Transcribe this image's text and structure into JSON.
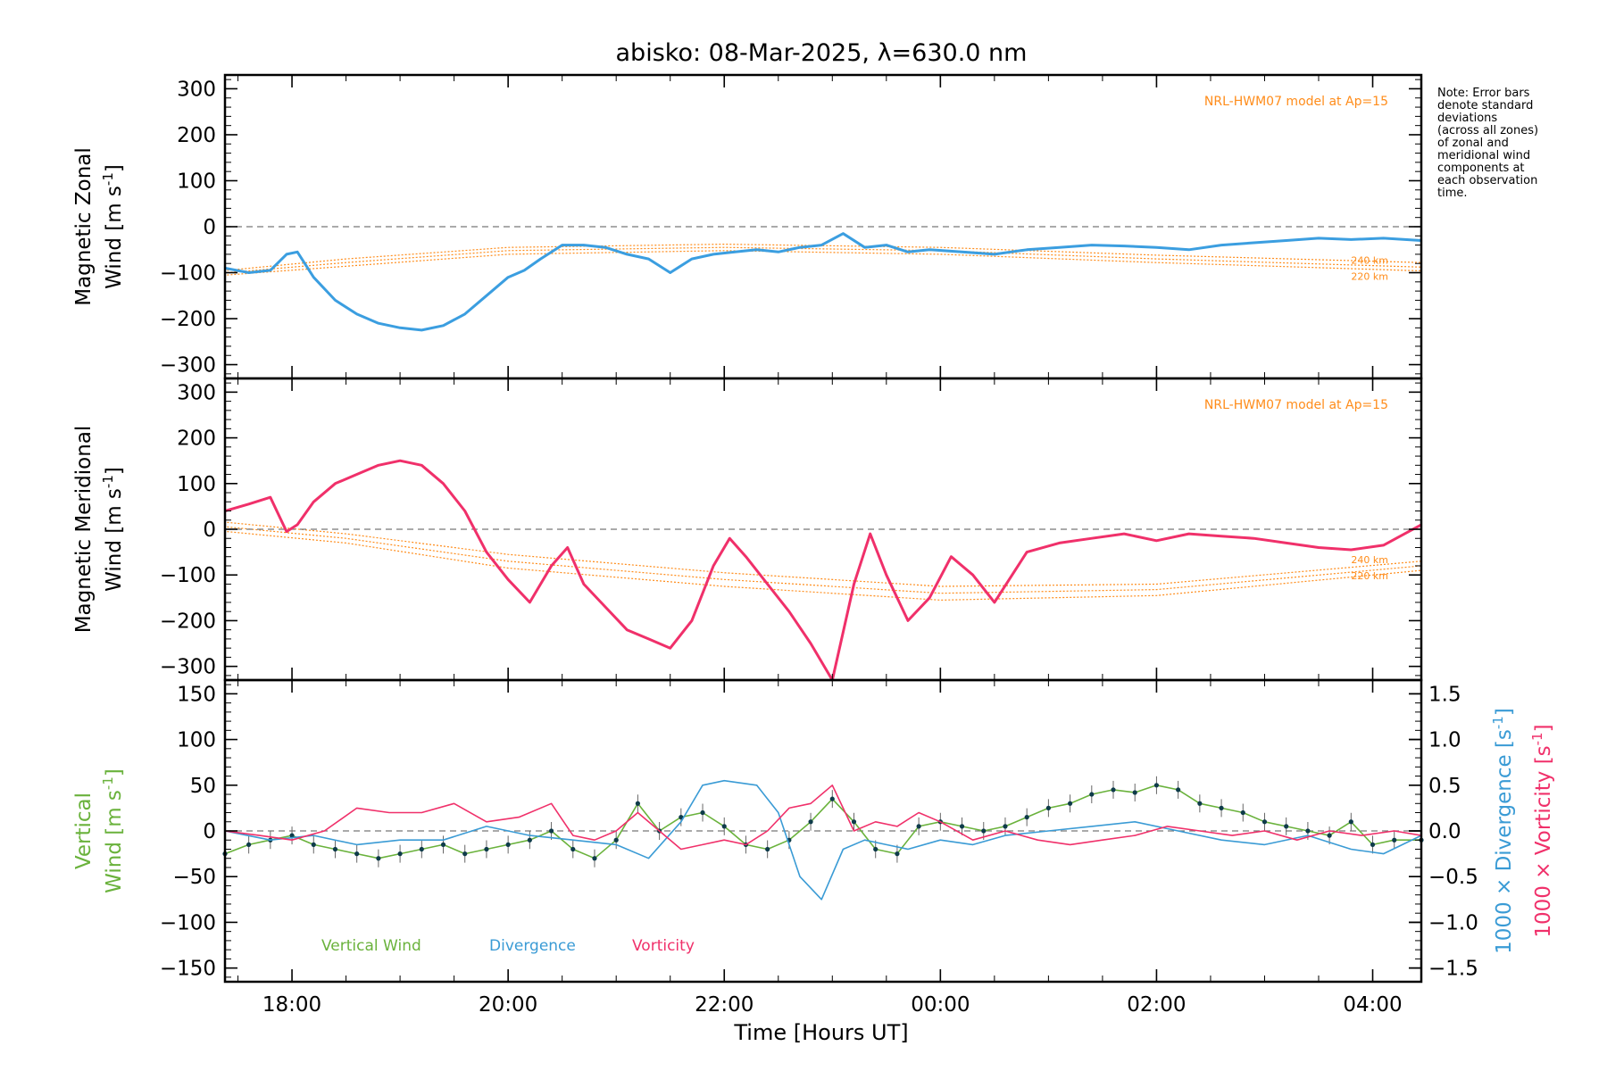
{
  "chart_data": {
    "type": "line",
    "title": "abisko: 08-Mar-2025, λ=630.0 nm",
    "xlabel": "Time [Hours UT]",
    "x_range_hours": [
      17.38,
      28.45
    ],
    "x_ticks": [
      {
        "hour": 18,
        "label": "18:00"
      },
      {
        "hour": 20,
        "label": "20:00"
      },
      {
        "hour": 22,
        "label": "22:00"
      },
      {
        "hour": 24,
        "label": "00:00"
      },
      {
        "hour": 26,
        "label": "02:00"
      },
      {
        "hour": 28,
        "label": "04:00"
      }
    ],
    "note_lines": [
      "Note: Error bars",
      "denote standard",
      "deviations",
      "(across all zones)",
      "of zonal and",
      "meridional wind",
      "components at",
      "each observation",
      "time."
    ],
    "panels": [
      {
        "id": "zonal",
        "ylabel_line1": "Magnetic Zonal",
        "ylabel_line2": "Wind [m s",
        "ylabel_sup": "-1",
        "ylabel_end": "]",
        "ylim": [
          -330,
          330
        ],
        "yticks": [
          300,
          200,
          100,
          0,
          -100,
          -200,
          -300
        ],
        "model_label": "NRL-HWM07 model at Ap=15",
        "altitude_labels": [
          "240 km",
          "220 km"
        ],
        "model_curves": [
          {
            "x": [
              17.4,
              18.5,
              20.0,
              22.0,
              24.0,
              26.0,
              28.45
            ],
            "y": [
              -95,
              -70,
              -45,
              -38,
              -45,
              -62,
              -78
            ]
          },
          {
            "x": [
              17.4,
              18.5,
              20.0,
              22.0,
              24.0,
              26.0,
              28.45
            ],
            "y": [
              -100,
              -78,
              -52,
              -45,
              -52,
              -70,
              -88
            ]
          },
          {
            "x": [
              17.4,
              18.5,
              20.0,
              22.0,
              24.0,
              26.0,
              28.45
            ],
            "y": [
              -105,
              -86,
              -60,
              -52,
              -60,
              -78,
              -96
            ]
          }
        ],
        "series": [
          {
            "name": "Zonal Wind",
            "color": "#3b9ee0",
            "x": [
              17.38,
              17.6,
              17.8,
              17.95,
              18.05,
              18.2,
              18.4,
              18.6,
              18.8,
              19.0,
              19.2,
              19.4,
              19.6,
              19.8,
              20.0,
              20.15,
              20.3,
              20.5,
              20.7,
              20.9,
              21.1,
              21.3,
              21.5,
              21.7,
              21.9,
              22.1,
              22.3,
              22.5,
              22.7,
              22.9,
              23.1,
              23.3,
              23.5,
              23.7,
              23.9,
              24.2,
              24.5,
              24.8,
              25.1,
              25.4,
              25.7,
              26.0,
              26.3,
              26.6,
              26.9,
              27.2,
              27.5,
              27.8,
              28.1,
              28.45
            ],
            "y": [
              -90,
              -100,
              -95,
              -60,
              -55,
              -110,
              -160,
              -190,
              -210,
              -220,
              -225,
              -215,
              -190,
              -150,
              -110,
              -95,
              -70,
              -40,
              -40,
              -45,
              -60,
              -70,
              -100,
              -70,
              -60,
              -55,
              -50,
              -55,
              -45,
              -40,
              -15,
              -45,
              -40,
              -55,
              -50,
              -55,
              -60,
              -50,
              -45,
              -40,
              -42,
              -45,
              -50,
              -40,
              -35,
              -30,
              -25,
              -28,
              -25,
              -30
            ]
          }
        ]
      },
      {
        "id": "meridional",
        "ylabel_line1": "Magnetic Meridional",
        "ylabel_line2": "Wind [m s",
        "ylabel_sup": "-1",
        "ylabel_end": "]",
        "ylim": [
          -330,
          330
        ],
        "yticks": [
          300,
          200,
          100,
          0,
          -100,
          -200,
          -300
        ],
        "model_label": "NRL-HWM07 model at Ap=15",
        "altitude_labels": [
          "240 km",
          "220 km"
        ],
        "model_curves": [
          {
            "x": [
              17.4,
              18.5,
              20.0,
              22.0,
              24.0,
              26.0,
              28.45
            ],
            "y": [
              15,
              -10,
              -55,
              -95,
              -125,
              -120,
              -70
            ]
          },
          {
            "x": [
              17.4,
              18.5,
              20.0,
              22.0,
              24.0,
              26.0,
              28.45
            ],
            "y": [
              5,
              -20,
              -70,
              -110,
              -140,
              -132,
              -80
            ]
          },
          {
            "x": [
              17.4,
              18.5,
              20.0,
              22.0,
              24.0,
              26.0,
              28.45
            ],
            "y": [
              -5,
              -30,
              -85,
              -125,
              -155,
              -145,
              -90
            ]
          }
        ],
        "series": [
          {
            "name": "Meridional Wind",
            "color": "#f0306a",
            "x": [
              17.38,
              17.6,
              17.8,
              17.95,
              18.05,
              18.2,
              18.4,
              18.6,
              18.8,
              19.0,
              19.2,
              19.4,
              19.6,
              19.8,
              20.0,
              20.2,
              20.4,
              20.55,
              20.7,
              20.9,
              21.1,
              21.3,
              21.5,
              21.7,
              21.9,
              22.05,
              22.2,
              22.4,
              22.6,
              22.8,
              23.0,
              23.2,
              23.35,
              23.5,
              23.7,
              23.9,
              24.1,
              24.3,
              24.5,
              24.8,
              25.1,
              25.4,
              25.7,
              26.0,
              26.3,
              26.6,
              26.9,
              27.2,
              27.5,
              27.8,
              28.1,
              28.45
            ],
            "y": [
              40,
              55,
              70,
              -5,
              10,
              60,
              100,
              120,
              140,
              150,
              140,
              100,
              40,
              -50,
              -110,
              -160,
              -80,
              -40,
              -120,
              -170,
              -220,
              -240,
              -260,
              -200,
              -80,
              -20,
              -60,
              -120,
              -180,
              -250,
              -330,
              -120,
              -10,
              -100,
              -200,
              -150,
              -60,
              -100,
              -160,
              -50,
              -30,
              -20,
              -10,
              -25,
              -10,
              -15,
              -20,
              -30,
              -40,
              -45,
              -35,
              10
            ]
          }
        ]
      },
      {
        "id": "vertical",
        "ylabel_line1": "Vertical",
        "ylabel_line2": "Wind [m s",
        "ylabel_sup": "-1",
        "ylabel_end": "]",
        "ylim": [
          -165,
          165
        ],
        "yticks": [
          150,
          100,
          50,
          0,
          -50,
          -100,
          -150
        ],
        "y2lim": [
          -1.65,
          1.65
        ],
        "y2ticks": [
          1.5,
          1.0,
          0.5,
          0.0,
          -0.5,
          -1.0,
          -1.5
        ],
        "y2label_div": "1000 × Divergence [s",
        "y2label_vort": "1000 × Vorticity [s",
        "legend": [
          "Vertical Wind",
          "Divergence",
          "Vorticity"
        ],
        "series": [
          {
            "name": "Vertical Wind",
            "color": "#6ab23c",
            "axis": "left",
            "x": [
              17.38,
              17.6,
              17.8,
              18.0,
              18.2,
              18.4,
              18.6,
              18.8,
              19.0,
              19.2,
              19.4,
              19.6,
              19.8,
              20.0,
              20.2,
              20.4,
              20.6,
              20.8,
              21.0,
              21.2,
              21.4,
              21.6,
              21.8,
              22.0,
              22.2,
              22.4,
              22.6,
              22.8,
              23.0,
              23.2,
              23.4,
              23.6,
              23.8,
              24.0,
              24.2,
              24.4,
              24.6,
              24.8,
              25.0,
              25.2,
              25.4,
              25.6,
              25.8,
              26.0,
              26.2,
              26.4,
              26.6,
              26.8,
              27.0,
              27.2,
              27.4,
              27.6,
              27.8,
              28.0,
              28.2,
              28.45
            ],
            "y": [
              -25,
              -15,
              -10,
              -5,
              -15,
              -20,
              -25,
              -30,
              -25,
              -20,
              -15,
              -25,
              -20,
              -15,
              -10,
              0,
              -20,
              -30,
              -10,
              30,
              0,
              15,
              20,
              5,
              -15,
              -20,
              -10,
              10,
              35,
              10,
              -20,
              -25,
              5,
              10,
              5,
              0,
              5,
              15,
              25,
              30,
              40,
              45,
              42,
              50,
              45,
              30,
              25,
              20,
              10,
              5,
              0,
              -5,
              10,
              -15,
              -10,
              -10
            ]
          },
          {
            "name": "Divergence",
            "color": "#3a9bd5",
            "axis": "right",
            "x": [
              17.38,
              17.8,
              18.2,
              18.6,
              19.0,
              19.4,
              19.8,
              20.2,
              20.6,
              21.0,
              21.3,
              21.6,
              21.8,
              22.0,
              22.3,
              22.5,
              22.7,
              22.9,
              23.1,
              23.3,
              23.5,
              23.7,
              24.0,
              24.3,
              24.6,
              25.0,
              25.4,
              25.8,
              26.2,
              26.6,
              27.0,
              27.4,
              27.8,
              28.1,
              28.45
            ],
            "y": [
              0.0,
              -0.1,
              -0.05,
              -0.15,
              -0.1,
              -0.1,
              0.05,
              -0.05,
              -0.1,
              -0.15,
              -0.3,
              0.1,
              0.5,
              0.55,
              0.5,
              0.2,
              -0.5,
              -0.75,
              -0.2,
              -0.1,
              -0.15,
              -0.2,
              -0.1,
              -0.15,
              -0.05,
              0.0,
              0.05,
              0.1,
              0.0,
              -0.1,
              -0.15,
              -0.05,
              -0.2,
              -0.25,
              -0.05
            ]
          },
          {
            "name": "Vorticity",
            "color": "#f0306a",
            "axis": "right",
            "x": [
              17.38,
              17.7,
              18.0,
              18.3,
              18.6,
              18.9,
              19.2,
              19.5,
              19.8,
              20.1,
              20.4,
              20.6,
              20.8,
              21.0,
              21.2,
              21.4,
              21.6,
              21.8,
              22.0,
              22.2,
              22.4,
              22.6,
              22.8,
              23.0,
              23.2,
              23.4,
              23.6,
              23.8,
              24.0,
              24.3,
              24.6,
              24.9,
              25.2,
              25.5,
              25.8,
              26.1,
              26.4,
              26.7,
              27.0,
              27.3,
              27.6,
              27.9,
              28.2,
              28.45
            ],
            "y": [
              0.0,
              -0.05,
              -0.1,
              0.0,
              0.25,
              0.2,
              0.2,
              0.3,
              0.1,
              0.15,
              0.3,
              -0.05,
              -0.1,
              0.0,
              0.2,
              0.0,
              -0.2,
              -0.15,
              -0.1,
              -0.15,
              0.0,
              0.25,
              0.3,
              0.5,
              0.0,
              0.1,
              0.05,
              0.2,
              0.1,
              -0.1,
              0.0,
              -0.1,
              -0.15,
              -0.1,
              -0.05,
              0.05,
              0.0,
              -0.05,
              0.0,
              -0.1,
              0.0,
              -0.05,
              0.0,
              -0.05
            ]
          }
        ]
      }
    ]
  }
}
